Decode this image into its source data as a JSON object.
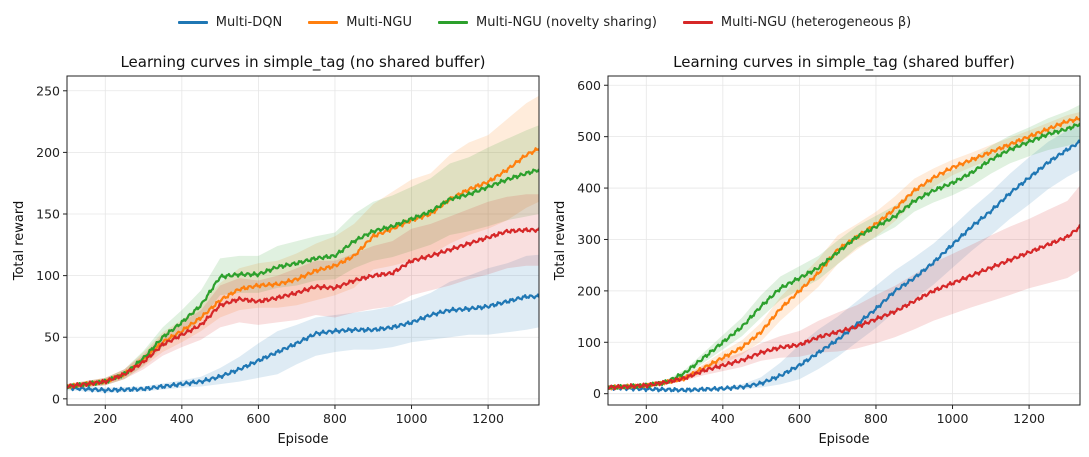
{
  "legend": [
    {
      "label": "Multi-DQN",
      "color": "#1f77b4"
    },
    {
      "label": "Multi-NGU",
      "color": "#ff7f0e"
    },
    {
      "label": "Multi-NGU (novelty sharing)",
      "color": "#2ca02c"
    },
    {
      "label": "Multi-NGU (heterogeneous β)",
      "color": "#d62728"
    }
  ],
  "chart_data": [
    {
      "type": "line",
      "title": "Learning curves in simple_tag (no shared buffer)",
      "xlabel": "Episode",
      "ylabel": "Total reward",
      "xlim": [
        100,
        1333
      ],
      "ylim": [
        -5,
        262
      ],
      "xticks": [
        200,
        400,
        600,
        800,
        1000,
        1200
      ],
      "yticks": [
        0,
        50,
        100,
        150,
        200,
        250
      ],
      "grid": true,
      "series": [
        {
          "name": "Multi-DQN",
          "color": "#1f77b4",
          "x": [
            100,
            200,
            300,
            400,
            450,
            500,
            550,
            600,
            650,
            700,
            750,
            800,
            850,
            900,
            950,
            1000,
            1050,
            1100,
            1150,
            1200,
            1250,
            1300,
            1333
          ],
          "y": [
            9,
            7,
            8,
            12,
            14,
            18,
            24,
            31,
            38,
            45,
            53,
            55,
            56,
            56,
            58,
            62,
            68,
            72,
            73,
            75,
            79,
            83,
            83
          ],
          "lower": [
            7,
            5,
            6,
            9,
            10,
            12,
            14,
            17,
            20,
            28,
            35,
            38,
            40,
            40,
            42,
            46,
            48,
            50,
            52,
            52,
            54,
            56,
            58
          ],
          "upper": [
            11,
            9,
            10,
            15,
            18,
            25,
            34,
            45,
            55,
            60,
            66,
            68,
            70,
            72,
            75,
            80,
            86,
            95,
            100,
            106,
            110,
            116,
            117
          ]
        },
        {
          "name": "Multi-NGU",
          "color": "#ff7f0e",
          "x": [
            100,
            200,
            250,
            300,
            350,
            400,
            450,
            500,
            550,
            600,
            650,
            700,
            750,
            800,
            850,
            900,
            950,
            1000,
            1050,
            1100,
            1150,
            1200,
            1250,
            1300,
            1333
          ],
          "y": [
            10,
            14,
            20,
            32,
            46,
            55,
            66,
            80,
            89,
            92,
            93,
            97,
            104,
            108,
            116,
            132,
            138,
            145,
            150,
            162,
            170,
            176,
            186,
            198,
            203
          ],
          "lower": [
            8,
            11,
            16,
            26,
            38,
            46,
            55,
            66,
            72,
            74,
            74,
            76,
            80,
            84,
            90,
            105,
            108,
            112,
            117,
            126,
            133,
            138,
            145,
            155,
            160
          ],
          "upper": [
            12,
            17,
            24,
            38,
            54,
            64,
            77,
            94,
            106,
            110,
            112,
            118,
            126,
            132,
            142,
            158,
            168,
            178,
            183,
            198,
            208,
            214,
            227,
            240,
            246
          ]
        },
        {
          "name": "Multi-NGU (novelty sharing)",
          "color": "#2ca02c",
          "x": [
            100,
            200,
            250,
            300,
            350,
            400,
            450,
            500,
            550,
            600,
            650,
            700,
            750,
            800,
            850,
            900,
            950,
            1000,
            1050,
            1100,
            1150,
            1200,
            1250,
            1300,
            1333
          ],
          "y": [
            10,
            14,
            20,
            33,
            50,
            62,
            76,
            99,
            101,
            101,
            107,
            110,
            114,
            116,
            128,
            136,
            140,
            146,
            152,
            162,
            166,
            172,
            178,
            183,
            186
          ],
          "lower": [
            8,
            11,
            16,
            27,
            42,
            52,
            64,
            84,
            86,
            86,
            90,
            92,
            96,
            97,
            106,
            112,
            115,
            120,
            125,
            133,
            136,
            140,
            145,
            148,
            150
          ],
          "upper": [
            12,
            17,
            24,
            39,
            58,
            72,
            88,
            114,
            116,
            116,
            124,
            128,
            132,
            135,
            150,
            160,
            165,
            172,
            179,
            191,
            196,
            204,
            211,
            218,
            222
          ]
        },
        {
          "name": "Multi-NGU (heterogeneous β)",
          "color": "#d62728",
          "x": [
            100,
            200,
            250,
            300,
            350,
            400,
            450,
            500,
            550,
            600,
            650,
            700,
            750,
            800,
            850,
            900,
            950,
            1000,
            1050,
            1100,
            1150,
            1200,
            1250,
            1300,
            1333
          ],
          "y": [
            10,
            14,
            20,
            30,
            44,
            52,
            60,
            76,
            81,
            79,
            82,
            86,
            91,
            90,
            96,
            100,
            102,
            112,
            116,
            121,
            126,
            131,
            136,
            137,
            137
          ],
          "lower": [
            8,
            11,
            16,
            24,
            35,
            42,
            48,
            58,
            62,
            60,
            62,
            64,
            68,
            66,
            70,
            73,
            75,
            84,
            88,
            92,
            97,
            101,
            106,
            108,
            108
          ],
          "upper": [
            12,
            17,
            24,
            36,
            52,
            62,
            72,
            92,
            98,
            96,
            100,
            106,
            112,
            112,
            118,
            124,
            128,
            138,
            142,
            148,
            154,
            160,
            164,
            166,
            166
          ]
        }
      ]
    },
    {
      "type": "line",
      "title": "Learning curves in simple_tag (shared buffer)",
      "xlabel": "Episode",
      "ylabel": "Total reward",
      "xlim": [
        100,
        1333
      ],
      "ylim": [
        -22,
        618
      ],
      "xticks": [
        200,
        400,
        600,
        800,
        1000,
        1200
      ],
      "yticks": [
        0,
        100,
        200,
        300,
        400,
        500,
        600
      ],
      "grid": true,
      "series": [
        {
          "name": "Multi-DQN",
          "color": "#1f77b4",
          "x": [
            100,
            200,
            300,
            400,
            450,
            500,
            550,
            600,
            650,
            700,
            750,
            800,
            850,
            900,
            950,
            1000,
            1050,
            1100,
            1150,
            1200,
            1250,
            1300,
            1333
          ],
          "y": [
            12,
            9,
            7,
            10,
            13,
            20,
            35,
            55,
            80,
            105,
            135,
            165,
            200,
            225,
            255,
            290,
            325,
            355,
            390,
            420,
            450,
            475,
            490
          ],
          "lower": [
            10,
            7,
            5,
            8,
            9,
            12,
            18,
            28,
            48,
            72,
            100,
            128,
            160,
            184,
            212,
            245,
            278,
            308,
            340,
            368,
            398,
            422,
            435
          ],
          "upper": [
            14,
            11,
            9,
            13,
            18,
            32,
            60,
            95,
            125,
            150,
            180,
            210,
            240,
            265,
            292,
            325,
            360,
            392,
            428,
            460,
            490,
            512,
            525
          ]
        },
        {
          "name": "Multi-NGU",
          "color": "#ff7f0e",
          "x": [
            100,
            200,
            250,
            300,
            350,
            400,
            450,
            500,
            550,
            600,
            650,
            700,
            750,
            800,
            850,
            900,
            950,
            1000,
            1050,
            1100,
            1150,
            1200,
            1250,
            1300,
            1333
          ],
          "y": [
            12,
            16,
            22,
            30,
            50,
            70,
            90,
            120,
            165,
            200,
            235,
            280,
            305,
            330,
            360,
            395,
            420,
            440,
            455,
            470,
            485,
            500,
            515,
            530,
            535
          ],
          "lower": [
            10,
            13,
            18,
            25,
            42,
            58,
            76,
            102,
            142,
            175,
            208,
            252,
            280,
            306,
            336,
            372,
            402,
            425,
            441,
            456,
            472,
            488,
            503,
            518,
            522
          ],
          "upper": [
            14,
            19,
            26,
            35,
            58,
            82,
            104,
            138,
            188,
            225,
            262,
            308,
            330,
            354,
            384,
            418,
            438,
            455,
            469,
            484,
            498,
            512,
            527,
            542,
            548
          ]
        },
        {
          "name": "Multi-NGU (novelty sharing)",
          "color": "#2ca02c",
          "x": [
            100,
            200,
            250,
            300,
            350,
            400,
            450,
            500,
            550,
            600,
            650,
            700,
            750,
            800,
            850,
            900,
            950,
            1000,
            1050,
            1100,
            1150,
            1200,
            1250,
            1300,
            1333
          ],
          "y": [
            12,
            16,
            22,
            40,
            70,
            100,
            130,
            170,
            205,
            225,
            245,
            275,
            305,
            325,
            345,
            375,
            395,
            410,
            430,
            455,
            475,
            490,
            505,
            515,
            525
          ],
          "lower": [
            10,
            13,
            18,
            34,
            60,
            86,
            112,
            148,
            182,
            202,
            222,
            252,
            284,
            304,
            324,
            354,
            372,
            386,
            404,
            428,
            448,
            462,
            474,
            482,
            490
          ],
          "upper": [
            14,
            19,
            26,
            46,
            80,
            114,
            148,
            192,
            228,
            248,
            268,
            298,
            326,
            346,
            366,
            396,
            418,
            434,
            456,
            482,
            502,
            518,
            536,
            550,
            562
          ]
        },
        {
          "name": "Multi-NGU (heterogeneous β)",
          "color": "#d62728",
          "x": [
            100,
            200,
            250,
            300,
            350,
            400,
            450,
            500,
            550,
            600,
            650,
            700,
            750,
            800,
            850,
            900,
            950,
            1000,
            1050,
            1100,
            1150,
            1200,
            1250,
            1300,
            1333
          ],
          "y": [
            12,
            16,
            22,
            30,
            45,
            55,
            65,
            80,
            90,
            95,
            110,
            120,
            130,
            145,
            160,
            180,
            200,
            215,
            230,
            245,
            260,
            275,
            290,
            305,
            325
          ],
          "lower": [
            10,
            13,
            18,
            25,
            36,
            44,
            52,
            64,
            70,
            72,
            80,
            82,
            88,
            98,
            110,
            125,
            142,
            155,
            168,
            180,
            192,
            205,
            215,
            225,
            240
          ],
          "upper": [
            14,
            19,
            26,
            36,
            55,
            68,
            80,
            98,
            112,
            122,
            142,
            158,
            172,
            192,
            210,
            232,
            255,
            272,
            290,
            308,
            325,
            340,
            358,
            375,
            405
          ]
        }
      ]
    }
  ]
}
